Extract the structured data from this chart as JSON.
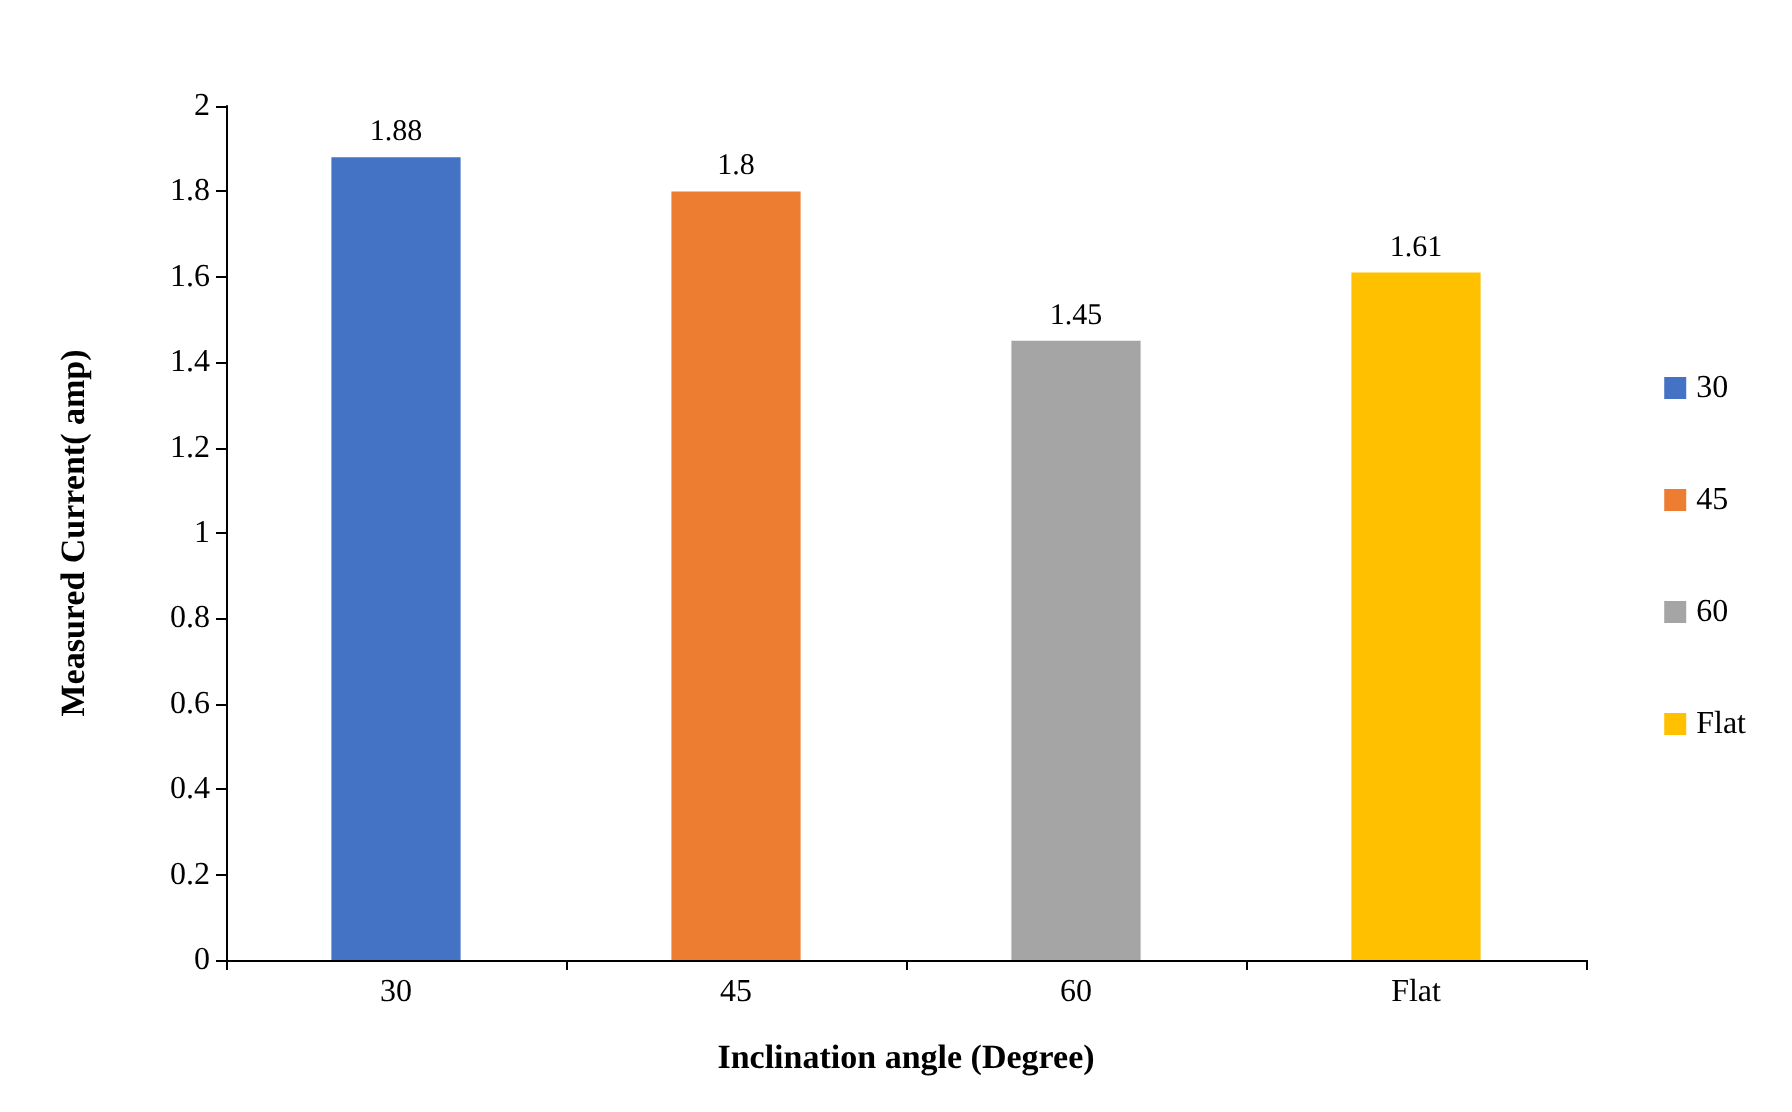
{
  "chart_data": {
    "type": "bar",
    "xlabel": "Inclination angle (Degree)",
    "ylabel": "Measured Current( amp)",
    "categories": [
      "30",
      "45",
      "60",
      "Flat"
    ],
    "series": [
      {
        "name": "30",
        "color": "#4472c4",
        "values": [
          1.88,
          null,
          null,
          null
        ]
      },
      {
        "name": "45",
        "color": "#ed7d31",
        "values": [
          null,
          1.8,
          null,
          null
        ]
      },
      {
        "name": "60",
        "color": "#a5a5a5",
        "values": [
          null,
          null,
          1.45,
          null
        ]
      },
      {
        "name": "Flat",
        "color": "#ffc000",
        "values": [
          null,
          null,
          null,
          1.61
        ]
      }
    ],
    "ylim": [
      0,
      2
    ],
    "yticks": [
      0,
      0.2,
      0.4,
      0.6,
      0.8,
      1,
      1.2,
      1.4,
      1.6,
      1.8,
      2
    ],
    "grid": false,
    "legend": "right",
    "data_labels": true
  }
}
